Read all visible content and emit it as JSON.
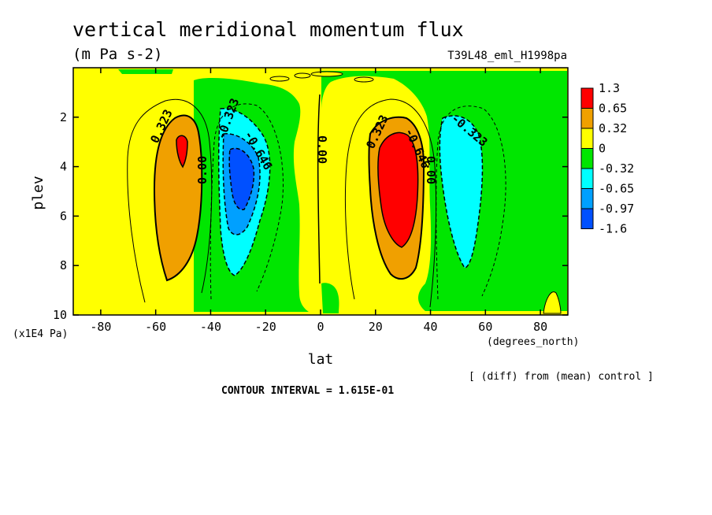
{
  "chart_data": {
    "type": "contour",
    "title": "vertical meridional momentum flux",
    "units": "(m Pa s-2)",
    "run_label": "T39L48_eml_H1998pa",
    "xlabel": "lat",
    "xunits": "(degrees_north)",
    "ylabel": "plev",
    "yunits": "(x1E4 Pa)",
    "xlim": [
      -90,
      90
    ],
    "ylim": [
      10,
      0
    ],
    "xticks": [
      "-80",
      "-60",
      "-40",
      "-20",
      "0",
      "20",
      "40",
      "60",
      "80"
    ],
    "xtick_values": [
      -80,
      -60,
      -40,
      -20,
      0,
      20,
      40,
      60,
      80
    ],
    "yticks": [
      "2",
      "4",
      "6",
      "8",
      "10"
    ],
    "ytick_values": [
      2,
      4,
      6,
      8,
      10
    ],
    "note": "[ (diff) from (mean) control ]",
    "contour_interval_text": "CONTOUR INTERVAL = 1.615E-01",
    "contour_labels": [
      "0.323",
      "-0.323",
      "-0.646",
      "0.00",
      "0.00",
      "0.323",
      "-0.646",
      "0.00",
      "-0.323"
    ],
    "colorbar": {
      "labels": [
        "1.3",
        "0.65",
        "0.32",
        "0",
        "-0.32",
        "-0.65",
        "-0.97",
        "-1.6"
      ],
      "colors": [
        "#ff0000",
        "#f0a000",
        "#ffff00",
        "#00e600",
        "#00ffff",
        "#00a0ff",
        "#0050ff"
      ]
    },
    "cells": {
      "description_free": true,
      "max_value_lat": 30,
      "max_value_plev": 4.5,
      "min_value_lat": -30,
      "min_value_plev": 4
    }
  }
}
